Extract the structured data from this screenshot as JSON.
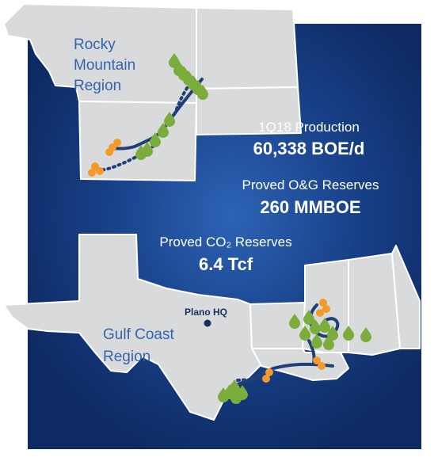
{
  "regions": [
    {
      "lines": [
        "Rocky",
        "Mountain",
        "Region"
      ]
    },
    {
      "lines": [
        "Gulf Coast",
        "Region"
      ]
    }
  ],
  "stats": [
    {
      "label": "1Q18 Production",
      "value": "60,338 BOE/d"
    },
    {
      "label": "Proved O&G Reserves",
      "value": "260 MMBOE"
    },
    {
      "label": "Proved CO₂ Reserves",
      "value": "6.4 Tcf"
    }
  ],
  "hq": {
    "label": "Plano HQ"
  }
}
